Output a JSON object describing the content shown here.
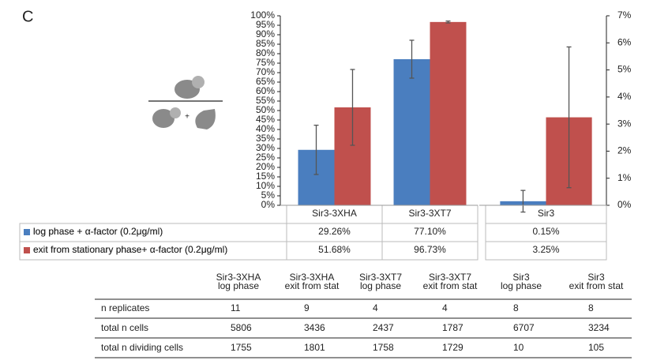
{
  "panel_label": "C",
  "diagram_plus": "+",
  "chart_data": [
    {
      "type": "bar",
      "categories": [
        "Sir3-3XHA",
        "Sir3-3XT7"
      ],
      "series": [
        {
          "name": "log phase + α-factor  (0.2μg/ml)",
          "color": "#4a7ebf",
          "values": [
            29.26,
            77.1
          ],
          "value_labels": [
            "29.26%",
            "77.10%"
          ],
          "errors": [
            13,
            10
          ]
        },
        {
          "name": "exit from stationary phase+ α-factor  (0.2μg/ml)",
          "color": "#c0504d",
          "values": [
            51.68,
            96.73
          ],
          "value_labels": [
            "51.68%",
            "96.73%"
          ],
          "errors": [
            20,
            0.5
          ]
        }
      ],
      "ylim": [
        0,
        100
      ],
      "yticks": [
        {
          "value": 0,
          "label": "0%"
        },
        {
          "value": 5,
          "label": "5%"
        },
        {
          "value": 10,
          "label": "10%"
        },
        {
          "value": 15,
          "label": "15%"
        },
        {
          "value": 20,
          "label": "20%"
        },
        {
          "value": 25,
          "label": "25%"
        },
        {
          "value": 30,
          "label": "30%"
        },
        {
          "value": 35,
          "label": "35%"
        },
        {
          "value": 40,
          "label": "40%"
        },
        {
          "value": 45,
          "label": "45%"
        },
        {
          "value": 50,
          "label": "50%"
        },
        {
          "value": 55,
          "label": "55%"
        },
        {
          "value": 60,
          "label": "60%"
        },
        {
          "value": 65,
          "label": "65%"
        },
        {
          "value": 70,
          "label": "70%"
        },
        {
          "value": 75,
          "label": "75%"
        },
        {
          "value": 80,
          "label": "80%"
        },
        {
          "value": 85,
          "label": "85%"
        },
        {
          "value": 90,
          "label": "90%"
        },
        {
          "value": 95,
          "label": "95%"
        },
        {
          "value": 100,
          "label": "100%"
        }
      ]
    },
    {
      "type": "bar",
      "categories": [
        "Sir3"
      ],
      "series": [
        {
          "color": "#4a7ebf",
          "values": [
            0.15
          ],
          "value_labels": [
            "0.15%"
          ],
          "errors": [
            0.4
          ],
          "axis": "y2"
        },
        {
          "color": "#c0504d",
          "values": [
            3.25
          ],
          "value_labels": [
            "3.25%"
          ],
          "errors": [
            2.6
          ],
          "axis": "y2"
        }
      ],
      "y2lim": [
        0,
        7
      ],
      "y2ticks": [
        {
          "value": 0,
          "label": "0%"
        },
        {
          "value": 1,
          "label": "1%"
        },
        {
          "value": 2,
          "label": "2%"
        },
        {
          "value": 3,
          "label": "3%"
        },
        {
          "value": 4,
          "label": "4%"
        },
        {
          "value": 5,
          "label": "5%"
        },
        {
          "value": 6,
          "label": "6%"
        },
        {
          "value": 7,
          "label": "7%"
        }
      ]
    }
  ],
  "table": {
    "columns": [
      [
        "Sir3-3XHA",
        "log phase"
      ],
      [
        "Sir3-3XHA",
        "exit from stat"
      ],
      [
        "Sir3-3XT7",
        "log phase"
      ],
      [
        "Sir3-3XT7",
        "exit from stat"
      ],
      [
        "Sir3",
        "log phase"
      ],
      [
        "Sir3",
        "exit from stat"
      ]
    ],
    "rows": [
      [
        "n replicates",
        11,
        9,
        4,
        4,
        8,
        8
      ],
      [
        "total n cells",
        5806,
        3436,
        2437,
        1787,
        6707,
        3234
      ],
      [
        "total n dividing cells",
        1755,
        1801,
        1758,
        1729,
        10,
        105
      ]
    ]
  }
}
